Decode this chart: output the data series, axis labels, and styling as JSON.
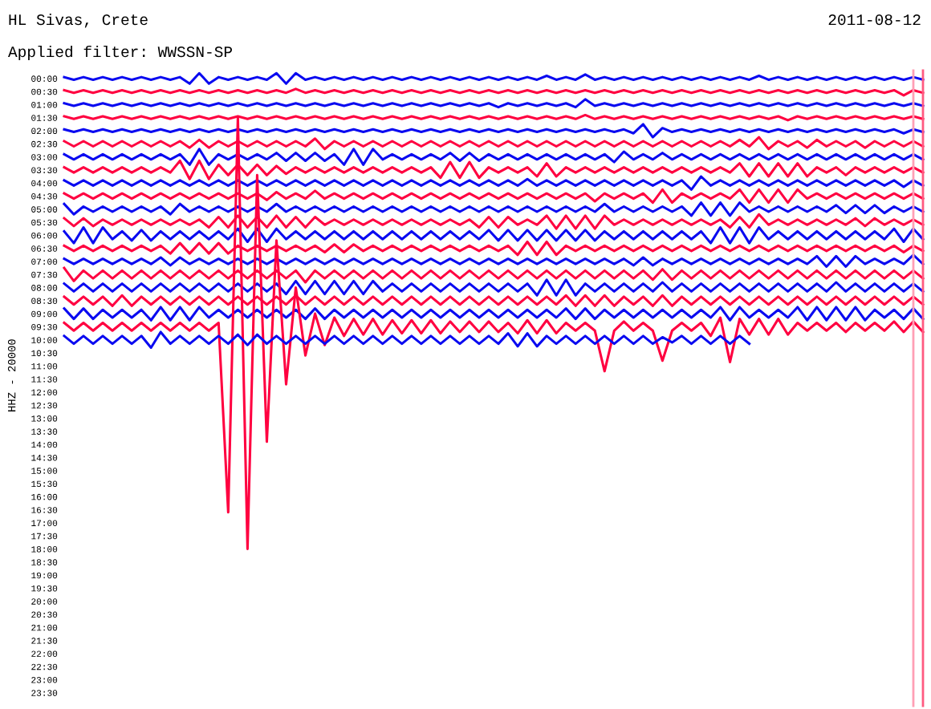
{
  "chart_data": {
    "type": "line",
    "title": "HL Sivas, Crete",
    "subtitle": "Applied filter: WWSSN-SP",
    "ylabel": "HHZ - 20000",
    "annotations": [
      "2011-08-12"
    ],
    "line_style": "solid",
    "tick_labels": "y",
    "categories": [
      null,
      null,
      null,
      null,
      null,
      null,
      null,
      null,
      null,
      null,
      null,
      null,
      null,
      null,
      null,
      null,
      null,
      null,
      null,
      null,
      null,
      null,
      null,
      null,
      null,
      null,
      null,
      null,
      null,
      null,
      null,
      null,
      null,
      null,
      null,
      null,
      null,
      null,
      null,
      null,
      null,
      null,
      null,
      null,
      null,
      null,
      null,
      null,
      null,
      null,
      null,
      null,
      null,
      null,
      null,
      null,
      null,
      null,
      null,
      null,
      null,
      null,
      null,
      null,
      null,
      null,
      null,
      null,
      null,
      null,
      null,
      null,
      null,
      null,
      null,
      null,
      null,
      null,
      null,
      null,
      null,
      null,
      null,
      null,
      null,
      null,
      null,
      null,
      null,
      null
    ],
    "ylim": [
      24.0,
      -0.3
    ],
    "yticks": [
      {
        "value": 0,
        "label": "00:00"
      },
      {
        "value": 0.5,
        "label": "00:30"
      },
      {
        "value": 1,
        "label": "01:00"
      },
      {
        "value": 1.5,
        "label": "01:30"
      },
      {
        "value": 2,
        "label": "02:00"
      },
      {
        "value": 2.5,
        "label": "02:30"
      },
      {
        "value": 3,
        "label": "03:00"
      },
      {
        "value": 3.5,
        "label": "03:30"
      },
      {
        "value": 4,
        "label": "04:00"
      },
      {
        "value": 4.5,
        "label": "04:30"
      },
      {
        "value": 5,
        "label": "05:00"
      },
      {
        "value": 5.5,
        "label": "05:30"
      },
      {
        "value": 6,
        "label": "06:00"
      },
      {
        "value": 6.5,
        "label": "06:30"
      },
      {
        "value": 7,
        "label": "07:00"
      },
      {
        "value": 7.5,
        "label": "07:30"
      },
      {
        "value": 8,
        "label": "08:00"
      },
      {
        "value": 8.5,
        "label": "08:30"
      },
      {
        "value": 9,
        "label": "09:00"
      },
      {
        "value": 9.5,
        "label": "09:30"
      },
      {
        "value": 10,
        "label": "10:00"
      },
      {
        "value": 10.5,
        "label": "10:30"
      },
      {
        "value": 11,
        "label": "11:00"
      },
      {
        "value": 11.5,
        "label": "11:30"
      },
      {
        "value": 12,
        "label": "12:00"
      },
      {
        "value": 12.5,
        "label": "12:30"
      },
      {
        "value": 13,
        "label": "13:00"
      },
      {
        "value": 13.5,
        "label": "13:30"
      },
      {
        "value": 14,
        "label": "14:00"
      },
      {
        "value": 14.5,
        "label": "14:30"
      },
      {
        "value": 15,
        "label": "15:00"
      },
      {
        "value": 15.5,
        "label": "15:30"
      },
      {
        "value": 16,
        "label": "16:00"
      },
      {
        "value": 16.5,
        "label": "16:30"
      },
      {
        "value": 17,
        "label": "17:00"
      },
      {
        "value": 17.5,
        "label": "17:30"
      },
      {
        "value": 18,
        "label": "18:00"
      },
      {
        "value": 18.5,
        "label": "18:30"
      },
      {
        "value": 19,
        "label": "19:00"
      },
      {
        "value": 19.5,
        "label": "19:30"
      },
      {
        "value": 20,
        "label": "20:00"
      },
      {
        "value": 20.5,
        "label": "20:30"
      },
      {
        "value": 21,
        "label": "21:00"
      },
      {
        "value": 21.5,
        "label": "21:30"
      },
      {
        "value": 22,
        "label": "22:00"
      },
      {
        "value": 22.5,
        "label": "22:30"
      },
      {
        "value": 23,
        "label": "23:00"
      },
      {
        "value": 23.5,
        "label": "23:30"
      }
    ],
    "series": [
      {
        "color": "#0a0af0",
        "values": [
          -0.05,
          0.05,
          -0.05,
          0.05,
          -0.05,
          0.05,
          -0.05,
          0.05,
          -0.05,
          0.05,
          -0.05,
          0.05,
          -0.05,
          0.2,
          -0.2,
          0.2,
          -0.05,
          0.05,
          -0.05,
          0.05,
          -0.05,
          0.05,
          -0.2,
          0.2,
          -0.2,
          0.05,
          -0.05,
          0.05,
          -0.05,
          0.05,
          -0.05,
          0.05,
          -0.05,
          0.05,
          -0.05,
          0.05,
          -0.05,
          0.05,
          -0.05,
          0.05,
          -0.05,
          0.05,
          -0.05,
          0.05,
          -0.05,
          0.05,
          -0.05,
          0.05,
          -0.05,
          0.05,
          -0.1,
          0.05,
          -0.05,
          0.05,
          -0.15,
          0.05,
          -0.05,
          0.05,
          -0.05,
          0.05,
          -0.05,
          0.05,
          -0.05,
          0.05,
          -0.05,
          0.05,
          -0.05,
          0.05,
          -0.05,
          0.05,
          -0.05,
          0.05,
          -0.1,
          0.05,
          -0.05,
          0.05,
          -0.05,
          0.05,
          -0.05,
          0.05,
          -0.05,
          0.05,
          -0.05,
          0.05,
          -0.05,
          0.05,
          -0.05,
          0.05,
          -0.05,
          0.05
        ]
      },
      {
        "color": "#ff0040",
        "values": [
          0.45,
          0.55,
          0.45,
          0.55,
          0.45,
          0.55,
          0.45,
          0.55,
          0.45,
          0.55,
          0.45,
          0.55,
          0.45,
          0.55,
          0.45,
          0.55,
          0.45,
          0.55,
          0.45,
          0.55,
          0.45,
          0.55,
          0.45,
          0.55,
          0.4,
          0.55,
          0.45,
          0.55,
          0.45,
          0.55,
          0.45,
          0.55,
          0.45,
          0.55,
          0.45,
          0.55,
          0.45,
          0.55,
          0.45,
          0.55,
          0.45,
          0.55,
          0.45,
          0.55,
          0.45,
          0.55,
          0.45,
          0.55,
          0.45,
          0.55,
          0.45,
          0.55,
          0.45,
          0.55,
          0.45,
          0.55,
          0.45,
          0.55,
          0.45,
          0.55,
          0.45,
          0.55,
          0.45,
          0.55,
          0.45,
          0.55,
          0.45,
          0.55,
          0.45,
          0.55,
          0.45,
          0.55,
          0.45,
          0.55,
          0.45,
          0.55,
          0.45,
          0.55,
          0.45,
          0.55,
          0.45,
          0.55,
          0.45,
          0.55,
          0.45,
          0.55,
          0.45,
          0.65,
          0.45,
          0.55
        ]
      },
      {
        "color": "#0a0af0",
        "values": [
          0.95,
          1.05,
          0.95,
          1.05,
          0.95,
          1.05,
          0.95,
          1.05,
          0.95,
          1.05,
          0.95,
          1.05,
          0.95,
          1.05,
          0.95,
          1.05,
          0.95,
          1.05,
          0.95,
          1.05,
          0.95,
          1.05,
          0.95,
          1.05,
          0.95,
          1.05,
          0.95,
          1.05,
          0.95,
          1.05,
          0.95,
          1.05,
          0.95,
          1.05,
          0.95,
          1.05,
          0.95,
          1.05,
          0.95,
          1.05,
          0.95,
          1.05,
          0.95,
          1.05,
          0.95,
          1.1,
          0.95,
          1.05,
          0.95,
          1.05,
          0.95,
          1.05,
          0.95,
          1.1,
          0.8,
          1.05,
          0.95,
          1.05,
          0.95,
          1.05,
          0.95,
          1.05,
          0.95,
          1.05,
          0.95,
          1.05,
          0.95,
          1.05,
          0.95,
          1.05,
          0.95,
          1.05,
          0.95,
          1.05,
          0.95,
          1.05,
          0.95,
          1.05,
          0.95,
          1.05,
          0.95,
          1.05,
          0.95,
          1.05,
          0.95,
          1.05,
          0.95,
          1.05,
          0.95,
          1.05
        ]
      },
      {
        "color": "#ff0040",
        "values": [
          1.45,
          1.55,
          1.45,
          1.55,
          1.45,
          1.55,
          1.45,
          1.55,
          1.45,
          1.55,
          1.45,
          1.55,
          1.45,
          1.55,
          1.45,
          1.55,
          1.45,
          1.55,
          1.45,
          1.55,
          1.45,
          1.55,
          1.45,
          1.55,
          1.45,
          1.55,
          1.45,
          1.55,
          1.45,
          1.55,
          1.45,
          1.55,
          1.45,
          1.55,
          1.45,
          1.55,
          1.45,
          1.55,
          1.45,
          1.55,
          1.45,
          1.55,
          1.45,
          1.55,
          1.45,
          1.55,
          1.45,
          1.55,
          1.45,
          1.55,
          1.45,
          1.55,
          1.45,
          1.55,
          1.4,
          1.55,
          1.45,
          1.55,
          1.45,
          1.55,
          1.45,
          1.55,
          1.45,
          1.55,
          1.45,
          1.55,
          1.45,
          1.55,
          1.45,
          1.55,
          1.45,
          1.55,
          1.45,
          1.55,
          1.45,
          1.6,
          1.45,
          1.55,
          1.45,
          1.55,
          1.45,
          1.55,
          1.45,
          1.55,
          1.45,
          1.55,
          1.45,
          1.55,
          1.45,
          1.55
        ]
      },
      {
        "color": "#0a0af0",
        "values": [
          1.95,
          2.05,
          1.95,
          2.05,
          1.95,
          2.05,
          1.95,
          2.05,
          1.95,
          2.05,
          1.95,
          2.05,
          1.95,
          2.05,
          1.95,
          2.05,
          1.95,
          2.05,
          1.95,
          2.05,
          1.95,
          2.05,
          1.95,
          2.05,
          1.95,
          2.05,
          1.95,
          2.05,
          1.95,
          2.05,
          1.95,
          2.05,
          1.95,
          2.05,
          1.95,
          2.05,
          1.95,
          2.05,
          1.95,
          2.05,
          1.95,
          2.05,
          1.95,
          2.05,
          1.95,
          2.05,
          1.95,
          2.05,
          1.95,
          2.05,
          1.95,
          2.05,
          1.95,
          2.05,
          1.95,
          2.05,
          1.95,
          2.05,
          1.95,
          2.1,
          1.75,
          2.25,
          1.9,
          2.05,
          1.95,
          2.05,
          1.95,
          2.05,
          1.95,
          2.05,
          1.95,
          2.05,
          1.95,
          2.05,
          1.95,
          2.05,
          1.95,
          2.05,
          1.95,
          2.05,
          1.95,
          2.05,
          1.95,
          2.05,
          1.95,
          2.05,
          1.95,
          2.1,
          1.95,
          2.05
        ]
      },
      {
        "color": "#ff0040",
        "values": [
          2.4,
          2.6,
          2.4,
          2.6,
          2.4,
          2.6,
          2.4,
          2.6,
          2.4,
          2.6,
          2.4,
          2.6,
          2.4,
          2.65,
          2.35,
          2.65,
          2.4,
          2.6,
          2.4,
          2.6,
          2.4,
          2.6,
          2.4,
          2.6,
          2.4,
          2.6,
          2.3,
          2.7,
          2.4,
          2.6,
          2.4,
          2.6,
          2.4,
          2.6,
          2.4,
          2.6,
          2.4,
          2.6,
          2.4,
          2.6,
          2.4,
          2.6,
          2.4,
          2.6,
          2.4,
          2.6,
          2.4,
          2.6,
          2.4,
          2.6,
          2.4,
          2.6,
          2.4,
          2.6,
          2.4,
          2.6,
          2.4,
          2.6,
          2.4,
          2.6,
          2.4,
          2.6,
          2.4,
          2.6,
          2.4,
          2.6,
          2.4,
          2.6,
          2.4,
          2.6,
          2.35,
          2.6,
          2.25,
          2.7,
          2.4,
          2.6,
          2.4,
          2.65,
          2.35,
          2.6,
          2.4,
          2.6,
          2.4,
          2.65,
          2.4,
          2.6,
          2.4,
          2.6,
          2.4,
          2.6
        ]
      },
      {
        "color": "#0a0af0",
        "values": [
          2.9,
          3.1,
          2.9,
          3.1,
          2.9,
          3.1,
          2.9,
          3.1,
          2.9,
          3.1,
          2.9,
          3.1,
          2.9,
          3.3,
          2.7,
          3.3,
          2.9,
          3.1,
          2.9,
          3.1,
          2.9,
          3.1,
          2.85,
          3.15,
          2.85,
          3.15,
          2.85,
          3.15,
          2.9,
          3.3,
          2.7,
          3.3,
          2.7,
          3.1,
          2.9,
          3.1,
          2.9,
          3.1,
          2.9,
          3.1,
          2.85,
          3.15,
          2.85,
          3.15,
          2.9,
          3.1,
          2.9,
          3.1,
          2.9,
          3.1,
          2.9,
          3.1,
          2.9,
          3.1,
          2.9,
          3.1,
          2.9,
          3.2,
          2.8,
          3.1,
          2.9,
          3.1,
          2.85,
          3.1,
          2.9,
          3.1,
          2.9,
          3.1,
          2.9,
          3.1,
          2.9,
          3.1,
          2.9,
          3.1,
          2.9,
          3.1,
          2.9,
          3.1,
          2.9,
          3.1,
          2.9,
          3.1,
          2.9,
          3.1,
          2.9,
          3.1,
          2.9,
          3.1,
          2.9,
          3.1
        ]
      },
      {
        "color": "#ff0040",
        "values": [
          3.4,
          3.6,
          3.4,
          3.6,
          3.4,
          3.6,
          3.4,
          3.6,
          3.4,
          3.6,
          3.4,
          3.6,
          3.15,
          3.85,
          3.15,
          3.85,
          3.3,
          3.7,
          3.3,
          3.7,
          3.3,
          3.7,
          3.35,
          3.65,
          3.4,
          3.6,
          3.4,
          3.6,
          3.4,
          3.6,
          3.4,
          3.6,
          3.4,
          3.6,
          3.4,
          3.6,
          3.4,
          3.6,
          3.4,
          3.8,
          3.2,
          3.8,
          3.2,
          3.8,
          3.4,
          3.6,
          3.4,
          3.6,
          3.4,
          3.75,
          3.25,
          3.75,
          3.4,
          3.6,
          3.4,
          3.6,
          3.4,
          3.6,
          3.4,
          3.6,
          3.4,
          3.6,
          3.4,
          3.6,
          3.4,
          3.6,
          3.4,
          3.6,
          3.4,
          3.6,
          3.25,
          3.75,
          3.25,
          3.75,
          3.25,
          3.75,
          3.25,
          3.75,
          3.4,
          3.6,
          3.4,
          3.7,
          3.4,
          3.6,
          3.4,
          3.6,
          3.4,
          3.6,
          3.4,
          3.6
        ]
      },
      {
        "color": "#0a0af0",
        "values": [
          3.9,
          4.1,
          3.9,
          4.1,
          3.9,
          4.1,
          3.9,
          4.1,
          3.9,
          4.1,
          3.9,
          4.1,
          3.9,
          4.1,
          3.9,
          4.1,
          3.9,
          4.1,
          3.9,
          4.1,
          3.9,
          4.1,
          3.9,
          4.1,
          3.9,
          4.1,
          3.9,
          4.1,
          3.9,
          4.1,
          3.9,
          4.1,
          3.9,
          4.1,
          3.9,
          4.1,
          3.9,
          4.1,
          3.9,
          4.1,
          3.9,
          4.1,
          3.9,
          4.1,
          3.9,
          4.1,
          3.9,
          4.1,
          3.85,
          4.1,
          3.9,
          4.1,
          3.9,
          4.1,
          3.9,
          4.1,
          3.9,
          4.1,
          3.9,
          4.1,
          3.9,
          4.1,
          3.9,
          4.1,
          3.9,
          4.25,
          3.75,
          4.1,
          3.9,
          4.1,
          3.9,
          4.1,
          3.9,
          4.1,
          3.9,
          4.1,
          3.9,
          4.1,
          3.9,
          4.1,
          3.9,
          4.1,
          3.9,
          4.1,
          3.9,
          4.1,
          3.9,
          4.15,
          3.9,
          4.1
        ]
      },
      {
        "color": "#ff0040",
        "values": [
          4.4,
          4.6,
          4.4,
          4.6,
          4.4,
          4.6,
          4.4,
          4.6,
          4.4,
          4.6,
          4.4,
          4.6,
          4.4,
          4.6,
          4.4,
          4.6,
          4.4,
          4.6,
          4.4,
          4.6,
          4.4,
          4.65,
          4.35,
          4.6,
          4.4,
          4.6,
          4.3,
          4.6,
          4.4,
          4.6,
          4.4,
          4.6,
          4.4,
          4.6,
          4.4,
          4.6,
          4.4,
          4.6,
          4.4,
          4.6,
          4.4,
          4.6,
          4.4,
          4.6,
          4.4,
          4.6,
          4.4,
          4.6,
          4.4,
          4.6,
          4.4,
          4.6,
          4.4,
          4.6,
          4.4,
          4.7,
          4.4,
          4.6,
          4.4,
          4.6,
          4.4,
          4.75,
          4.25,
          4.75,
          4.4,
          4.6,
          4.4,
          4.6,
          4.4,
          4.6,
          4.25,
          4.75,
          4.25,
          4.75,
          4.25,
          4.75,
          4.25,
          4.6,
          4.4,
          4.6,
          4.4,
          4.6,
          4.4,
          4.6,
          4.4,
          4.6,
          4.4,
          4.6,
          4.4,
          4.6
        ]
      },
      {
        "color": "#0a0af0",
        "values": [
          4.8,
          5.2,
          4.9,
          5.1,
          4.9,
          5.1,
          4.9,
          5.1,
          4.9,
          5.1,
          4.9,
          5.2,
          4.8,
          5.1,
          4.9,
          5.1,
          4.9,
          5.1,
          4.9,
          5.1,
          4.9,
          5.1,
          4.8,
          5.1,
          4.9,
          5.1,
          4.9,
          5.1,
          4.9,
          5.1,
          4.9,
          5.1,
          4.9,
          5.1,
          4.9,
          5.1,
          4.9,
          5.1,
          4.9,
          5.1,
          4.9,
          5.1,
          4.9,
          5.1,
          4.9,
          5.1,
          4.9,
          5.1,
          4.9,
          5.1,
          4.9,
          5.1,
          4.9,
          5.1,
          4.9,
          5.1,
          4.8,
          5.1,
          4.9,
          5.1,
          4.9,
          5.1,
          4.9,
          5.1,
          4.9,
          5.25,
          4.75,
          5.25,
          4.75,
          5.25,
          4.75,
          5.1,
          4.9,
          5.1,
          4.9,
          5.1,
          4.9,
          5.1,
          4.9,
          5.1,
          4.85,
          5.15,
          4.85,
          5.15,
          4.85,
          5.15,
          4.9,
          5.1,
          4.9,
          5.1
        ]
      },
      {
        "color": "#ff0040",
        "values": [
          5.35,
          5.65,
          5.35,
          5.65,
          5.4,
          5.6,
          5.4,
          5.6,
          5.4,
          5.6,
          5.4,
          5.6,
          5.4,
          5.6,
          5.4,
          5.7,
          5.3,
          5.7,
          5.25,
          5.7,
          5.3,
          5.7,
          5.25,
          5.7,
          5.3,
          5.7,
          5.3,
          5.6,
          5.4,
          5.6,
          5.4,
          5.6,
          5.4,
          5.6,
          5.4,
          5.6,
          5.4,
          5.6,
          5.4,
          5.6,
          5.4,
          5.6,
          5.4,
          5.7,
          5.3,
          5.7,
          5.3,
          5.6,
          5.4,
          5.6,
          5.25,
          5.75,
          5.25,
          5.75,
          5.25,
          5.75,
          5.25,
          5.6,
          5.4,
          5.6,
          5.4,
          5.6,
          5.4,
          5.6,
          5.4,
          5.6,
          5.4,
          5.6,
          5.4,
          5.7,
          5.3,
          5.7,
          5.2,
          5.6,
          5.4,
          5.6,
          5.4,
          5.6,
          5.4,
          5.6,
          5.4,
          5.6,
          5.35,
          5.65,
          5.35,
          5.6,
          5.4,
          5.6,
          5.4,
          5.6
        ]
      },
      {
        "color": "#0a0af0",
        "values": [
          5.85,
          6.3,
          5.7,
          6.3,
          5.7,
          6.15,
          5.85,
          6.2,
          5.8,
          6.2,
          5.85,
          6.15,
          5.85,
          6.15,
          5.85,
          6.15,
          5.85,
          6.15,
          5.75,
          6.25,
          5.75,
          6.25,
          5.75,
          6.15,
          5.85,
          6.15,
          5.85,
          6.15,
          5.85,
          6.15,
          5.85,
          6.15,
          5.85,
          6.15,
          5.85,
          6.15,
          5.85,
          6.15,
          5.85,
          6.15,
          5.85,
          6.15,
          5.85,
          6.15,
          5.8,
          6.2,
          5.8,
          6.2,
          5.8,
          6.2,
          5.8,
          6.2,
          5.8,
          6.2,
          5.8,
          6.2,
          5.85,
          6.15,
          5.85,
          6.15,
          5.85,
          6.15,
          5.85,
          6.15,
          5.85,
          6.15,
          5.85,
          6.3,
          5.7,
          6.3,
          5.7,
          6.3,
          5.7,
          6.15,
          5.85,
          6.15,
          5.85,
          6.15,
          5.85,
          6.15,
          5.85,
          6.15,
          5.85,
          6.15,
          5.85,
          6.15,
          5.75,
          6.25,
          5.75,
          6.15
        ]
      },
      {
        "color": "#ff0040",
        "values": [
          6.4,
          6.6,
          6.4,
          6.6,
          6.4,
          6.6,
          6.4,
          6.6,
          6.4,
          6.6,
          6.4,
          6.7,
          6.3,
          6.7,
          6.3,
          6.7,
          6.3,
          6.7,
          6.4,
          6.6,
          6.4,
          6.6,
          6.4,
          6.6,
          6.4,
          6.6,
          6.4,
          6.65,
          6.35,
          6.65,
          6.35,
          6.6,
          6.4,
          6.6,
          6.4,
          6.6,
          6.4,
          6.6,
          6.4,
          6.6,
          6.4,
          6.6,
          6.4,
          6.6,
          6.4,
          6.6,
          6.4,
          6.75,
          6.25,
          6.75,
          6.25,
          6.75,
          6.4,
          6.6,
          6.4,
          6.6,
          6.4,
          6.6,
          6.4,
          6.6,
          6.4,
          6.6,
          6.4,
          6.6,
          6.4,
          6.6,
          6.4,
          6.6,
          6.4,
          6.6,
          6.4,
          6.6,
          6.4,
          6.6,
          6.4,
          6.6,
          6.4,
          6.6,
          6.4,
          6.6,
          6.4,
          6.6,
          6.4,
          6.6,
          6.4,
          6.6,
          6.4,
          6.65,
          6.4,
          6.6
        ]
      },
      {
        "color": "#0a0af0",
        "values": [
          6.9,
          7.1,
          6.9,
          7.1,
          6.9,
          7.1,
          6.9,
          7.1,
          6.9,
          7.1,
          6.85,
          7.15,
          6.85,
          7.1,
          6.9,
          7.1,
          6.9,
          7.1,
          6.9,
          7.1,
          6.9,
          7.1,
          6.9,
          7.1,
          6.9,
          7.1,
          6.9,
          7.1,
          6.9,
          7.1,
          6.9,
          7.1,
          6.9,
          7.1,
          6.9,
          7.1,
          6.9,
          7.1,
          6.9,
          7.1,
          6.9,
          7.1,
          6.9,
          7.1,
          6.9,
          7.1,
          6.9,
          7.1,
          6.9,
          7.1,
          6.9,
          7.1,
          6.9,
          7.1,
          6.9,
          7.1,
          6.9,
          7.1,
          6.9,
          7.15,
          6.85,
          7.15,
          6.9,
          7.1,
          6.9,
          7.1,
          6.9,
          7.1,
          6.9,
          7.1,
          6.9,
          7.1,
          6.9,
          7.1,
          6.9,
          7.1,
          6.9,
          7.1,
          6.8,
          7.2,
          6.8,
          7.2,
          6.8,
          7.1,
          6.9,
          7.1,
          6.9,
          7.1,
          6.75,
          7.1
        ]
      },
      {
        "color": "#ff0040",
        "values": [
          7.25,
          7.75,
          7.35,
          7.65,
          7.35,
          7.65,
          7.35,
          7.65,
          7.35,
          7.65,
          7.35,
          7.65,
          7.35,
          7.65,
          7.35,
          7.65,
          7.35,
          7.65,
          7.35,
          7.65,
          7.35,
          7.65,
          7.35,
          7.65,
          7.35,
          7.8,
          7.35,
          7.65,
          7.35,
          7.65,
          7.35,
          7.65,
          7.35,
          7.65,
          7.35,
          7.65,
          7.35,
          7.65,
          7.35,
          7.65,
          7.35,
          7.65,
          7.35,
          7.65,
          7.35,
          7.65,
          7.35,
          7.65,
          7.35,
          7.65,
          7.35,
          7.65,
          7.35,
          7.65,
          7.35,
          7.65,
          7.35,
          7.65,
          7.35,
          7.65,
          7.35,
          7.7,
          7.3,
          7.7,
          7.35,
          7.65,
          7.35,
          7.65,
          7.35,
          7.65,
          7.35,
          7.65,
          7.35,
          7.65,
          7.35,
          7.65,
          7.35,
          7.65,
          7.35,
          7.65,
          7.35,
          7.65,
          7.35,
          7.65,
          7.35,
          7.65,
          7.35,
          7.65,
          7.35,
          7.65
        ]
      },
      {
        "color": "#0a0af0",
        "values": [
          7.85,
          8.15,
          7.85,
          8.15,
          7.85,
          8.15,
          7.85,
          8.15,
          7.85,
          8.15,
          7.85,
          8.15,
          7.85,
          8.15,
          7.85,
          8.15,
          7.85,
          8.15,
          7.85,
          8.15,
          7.85,
          8.15,
          7.85,
          8.25,
          7.75,
          8.25,
          7.75,
          8.25,
          7.75,
          8.25,
          7.75,
          8.25,
          7.75,
          8.15,
          7.85,
          8.15,
          7.85,
          8.15,
          7.85,
          8.15,
          7.85,
          8.15,
          7.85,
          8.15,
          7.85,
          8.15,
          7.85,
          8.15,
          7.85,
          8.3,
          7.7,
          8.3,
          7.7,
          8.3,
          7.85,
          8.15,
          7.85,
          8.15,
          7.85,
          8.15,
          7.85,
          8.15,
          7.8,
          8.15,
          7.85,
          8.15,
          7.85,
          8.15,
          7.85,
          8.15,
          7.85,
          8.15,
          7.85,
          8.15,
          7.85,
          8.15,
          7.85,
          8.15,
          7.85,
          8.15,
          7.8,
          8.15,
          7.85,
          8.15,
          7.85,
          8.15,
          7.85,
          8.15,
          7.85,
          8.15
        ]
      },
      {
        "color": "#ff0040",
        "values": [
          8.35,
          8.65,
          8.35,
          8.65,
          8.35,
          8.7,
          8.3,
          8.7,
          8.35,
          8.65,
          8.35,
          8.65,
          8.35,
          8.65,
          8.35,
          8.65,
          8.35,
          8.65,
          8.35,
          8.65,
          8.35,
          8.65,
          8.35,
          8.65,
          8.3,
          8.65,
          8.35,
          8.65,
          8.35,
          8.65,
          8.35,
          8.65,
          8.35,
          8.65,
          8.35,
          8.65,
          8.35,
          8.65,
          8.35,
          8.65,
          8.35,
          8.65,
          8.35,
          8.65,
          8.35,
          8.65,
          8.35,
          8.65,
          8.35,
          8.65,
          8.35,
          8.65,
          8.3,
          8.7,
          8.3,
          8.7,
          8.3,
          8.7,
          8.35,
          8.65,
          8.35,
          8.7,
          8.3,
          8.7,
          8.35,
          8.65,
          8.35,
          8.65,
          8.35,
          8.65,
          8.35,
          8.65,
          8.35,
          8.65,
          8.35,
          8.65,
          8.35,
          8.65,
          8.35,
          8.65,
          8.35,
          8.65,
          8.35,
          8.65,
          8.35,
          8.65,
          8.35,
          8.65,
          8.35,
          8.65
        ]
      },
      {
        "color": "#0a0af0",
        "values": [
          8.8,
          9.2,
          8.8,
          9.2,
          8.85,
          9.15,
          8.85,
          9.15,
          8.85,
          9.25,
          8.75,
          9.25,
          8.75,
          9.25,
          8.75,
          9.15,
          8.85,
          9.15,
          8.85,
          9.15,
          8.85,
          9.15,
          8.85,
          9.15,
          8.85,
          9.2,
          8.8,
          9.2,
          8.85,
          9.15,
          8.85,
          9.15,
          8.85,
          9.15,
          8.85,
          9.15,
          8.85,
          9.15,
          8.85,
          9.15,
          8.85,
          9.15,
          8.85,
          9.15,
          8.85,
          9.15,
          8.85,
          9.15,
          8.85,
          9.15,
          8.85,
          9.15,
          8.8,
          9.2,
          8.8,
          9.2,
          8.85,
          9.15,
          8.85,
          9.15,
          8.85,
          9.15,
          8.85,
          9.15,
          8.85,
          9.15,
          8.85,
          9.15,
          8.75,
          9.25,
          8.75,
          9.15,
          8.85,
          9.15,
          8.85,
          9.15,
          8.75,
          9.25,
          8.75,
          9.25,
          8.75,
          9.25,
          8.75,
          9.25,
          8.85,
          9.15,
          8.85,
          9.2,
          8.8,
          9.2
        ]
      },
      {
        "color": "#ff0040",
        "values": [
          9.35,
          9.65,
          9.35,
          9.65,
          9.35,
          9.65,
          9.35,
          9.65,
          9.35,
          9.65,
          9.35,
          9.65,
          9.35,
          9.65,
          9.35,
          9.65,
          9.35,
          16.6,
          1.5,
          18.0,
          3.7,
          13.9,
          6.2,
          11.7,
          8.0,
          10.6,
          9.0,
          10.2,
          9.15,
          9.85,
          9.2,
          9.8,
          9.2,
          9.8,
          9.25,
          9.75,
          9.25,
          9.75,
          9.25,
          9.75,
          9.3,
          9.7,
          9.3,
          9.7,
          9.3,
          9.7,
          9.35,
          9.75,
          9.25,
          9.75,
          9.25,
          9.75,
          9.35,
          9.65,
          9.35,
          9.65,
          11.2,
          9.65,
          9.3,
          9.65,
          9.35,
          9.65,
          10.8,
          9.65,
          9.35,
          9.65,
          9.35,
          9.85,
          9.15,
          10.85,
          9.2,
          9.8,
          9.2,
          9.8,
          9.2,
          9.8,
          9.35,
          9.65,
          9.35,
          9.65,
          9.35,
          9.7,
          9.35,
          9.65,
          9.35,
          9.65,
          9.3,
          9.7,
          9.3,
          9.7
        ]
      },
      {
        "color": "#0a0af0",
        "values": [
          9.85,
          10.15,
          9.85,
          10.15,
          9.85,
          10.15,
          9.85,
          10.15,
          9.85,
          10.3,
          9.7,
          10.15,
          9.85,
          10.15,
          9.85,
          10.15,
          9.85,
          10.15,
          9.8,
          10.2,
          9.8,
          10.15,
          9.85,
          10.15,
          9.85,
          10.15,
          9.85,
          10.15,
          9.85,
          10.15,
          9.85,
          10.15,
          9.85,
          10.15,
          9.85,
          10.15,
          9.85,
          10.15,
          9.85,
          10.15,
          9.85,
          10.15,
          9.85,
          10.15,
          9.85,
          10.15,
          9.75,
          10.25,
          9.75,
          10.25,
          9.85,
          10.15,
          9.85,
          10.15,
          9.85,
          10.15,
          9.85,
          10.15,
          9.85,
          10.15,
          9.85,
          10.15,
          9.9,
          10.1,
          9.85,
          10.15,
          9.85,
          10.15,
          9.85,
          10.15,
          9.85,
          10.15,
          null,
          null,
          null,
          null,
          null,
          null,
          null,
          null,
          null,
          null,
          null,
          null,
          null,
          null,
          null,
          null,
          null,
          null
        ]
      }
    ]
  }
}
